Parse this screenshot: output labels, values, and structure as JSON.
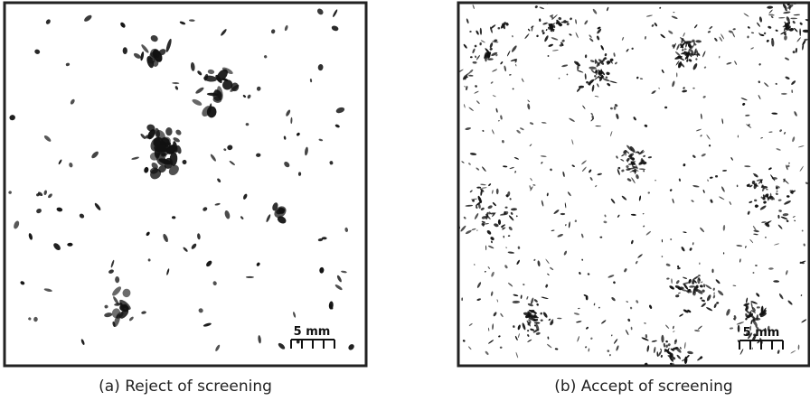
{
  "panels": [
    {
      "caption": "(a) Reject of screening",
      "scale_bar": "5 mm"
    },
    {
      "caption": "(b) Accept of screening",
      "scale_bar": "5 mm"
    }
  ]
}
